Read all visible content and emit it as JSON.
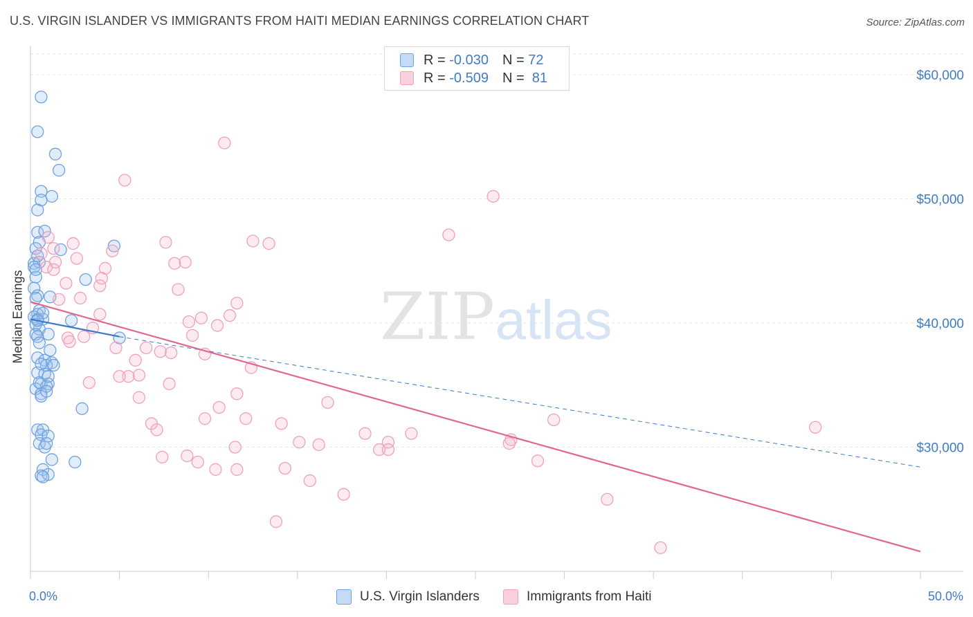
{
  "title": "U.S. VIRGIN ISLANDER VS IMMIGRANTS FROM HAITI MEDIAN EARNINGS CORRELATION CHART",
  "source": "Source: ZipAtlas.com",
  "watermark": {
    "zip": "ZIP",
    "atlas": "atlas"
  },
  "legend": {
    "rows": [
      {
        "r_label": "R =",
        "r_value": "-0.030",
        "n_label": "N =",
        "n_value": "72"
      },
      {
        "r_label": "R =",
        "r_value": "-0.509",
        "n_label": "N =",
        "n_value": "81"
      }
    ]
  },
  "bottom_legend": {
    "series1": "U.S. Virgin Islanders",
    "series2": "Immigrants from Haiti"
  },
  "chart_data": {
    "type": "scatter",
    "title": "U.S. VIRGIN ISLANDER VS IMMIGRANTS FROM HAITI MEDIAN EARNINGS CORRELATION CHART",
    "xlabel": "",
    "ylabel": "Median Earnings",
    "xlim": [
      0,
      50
    ],
    "ylim": [
      20000,
      62000
    ],
    "x_tick_labels": [
      "0.0%",
      "50.0%"
    ],
    "y_ticks": [
      30000,
      40000,
      50000,
      60000
    ],
    "y_tick_labels": [
      "$30,000",
      "$40,000",
      "$50,000",
      "$60,000"
    ],
    "grid": true,
    "colors": {
      "series1": "#6ea1e0",
      "series2": "#f0a0bc",
      "line1": "#3a78c9",
      "line2": "#e0668f",
      "tick": "#3f7cc4"
    },
    "series": [
      {
        "name": "U.S. Virgin Islanders",
        "r": -0.03,
        "n": 72,
        "trend": {
          "solid": [
            [
              0,
              40300
            ],
            [
              5.0,
              38900
            ]
          ],
          "dashed": [
            [
              5.0,
              38900
            ],
            [
              50,
              28400
            ]
          ]
        },
        "points": [
          [
            0.6,
            58200
          ],
          [
            0.4,
            55400
          ],
          [
            1.4,
            53600
          ],
          [
            1.6,
            52300
          ],
          [
            0.6,
            50600
          ],
          [
            1.2,
            50200
          ],
          [
            0.6,
            49900
          ],
          [
            0.4,
            49100
          ],
          [
            0.4,
            47300
          ],
          [
            0.8,
            47400
          ],
          [
            0.5,
            46500
          ],
          [
            1.7,
            45900
          ],
          [
            4.7,
            46200
          ],
          [
            0.3,
            46000
          ],
          [
            0.2,
            44800
          ],
          [
            0.5,
            44900
          ],
          [
            0.2,
            44500
          ],
          [
            3.1,
            43500
          ],
          [
            0.3,
            43700
          ],
          [
            0.2,
            42800
          ],
          [
            0.4,
            42200
          ],
          [
            0.3,
            42000
          ],
          [
            1.1,
            42100
          ],
          [
            0.5,
            41000
          ],
          [
            0.4,
            40700
          ],
          [
            0.2,
            40500
          ],
          [
            0.4,
            40300
          ],
          [
            0.7,
            40300
          ],
          [
            2.3,
            40200
          ],
          [
            0.3,
            39900
          ],
          [
            0.5,
            39500
          ],
          [
            0.3,
            39100
          ],
          [
            1.0,
            39100
          ],
          [
            0.4,
            38900
          ],
          [
            5.0,
            38800
          ],
          [
            1.1,
            37800
          ],
          [
            0.4,
            37200
          ],
          [
            0.8,
            37000
          ],
          [
            1.2,
            36800
          ],
          [
            0.9,
            36600
          ],
          [
            1.3,
            36600
          ],
          [
            0.4,
            36000
          ],
          [
            0.8,
            35900
          ],
          [
            0.6,
            35100
          ],
          [
            1.0,
            35100
          ],
          [
            0.9,
            34900
          ],
          [
            0.3,
            34700
          ],
          [
            0.6,
            34300
          ],
          [
            0.6,
            34100
          ],
          [
            2.9,
            33100
          ],
          [
            0.4,
            31400
          ],
          [
            0.7,
            31400
          ],
          [
            0.6,
            31000
          ],
          [
            1.0,
            30900
          ],
          [
            0.5,
            30300
          ],
          [
            0.8,
            30000
          ],
          [
            0.9,
            30300
          ],
          [
            1.2,
            29000
          ],
          [
            2.5,
            28800
          ],
          [
            0.7,
            28200
          ],
          [
            0.6,
            27700
          ],
          [
            1.0,
            27800
          ],
          [
            0.7,
            27600
          ],
          [
            0.3,
            44300
          ],
          [
            0.4,
            45400
          ],
          [
            0.7,
            40800
          ],
          [
            0.4,
            40200
          ],
          [
            0.5,
            38400
          ],
          [
            0.6,
            36700
          ],
          [
            0.5,
            35200
          ],
          [
            0.9,
            34500
          ],
          [
            1.0,
            35700
          ]
        ]
      },
      {
        "name": "Immigrants from Haiti",
        "r": -0.509,
        "n": 81,
        "trend": {
          "solid": [
            [
              0,
              41700
            ],
            [
              50,
              21600
            ]
          ]
        },
        "points": [
          [
            10.9,
            54500
          ],
          [
            5.3,
            51500
          ],
          [
            26.0,
            50200
          ],
          [
            23.5,
            47100
          ],
          [
            1.0,
            46900
          ],
          [
            2.4,
            46400
          ],
          [
            7.6,
            46500
          ],
          [
            12.5,
            46600
          ],
          [
            13.4,
            46400
          ],
          [
            1.3,
            46000
          ],
          [
            4.6,
            45800
          ],
          [
            0.6,
            45600
          ],
          [
            2.6,
            45200
          ],
          [
            1.4,
            44900
          ],
          [
            8.1,
            44800
          ],
          [
            8.7,
            44900
          ],
          [
            0.9,
            44500
          ],
          [
            1.3,
            44300
          ],
          [
            4.2,
            44400
          ],
          [
            4.0,
            43600
          ],
          [
            2.0,
            43200
          ],
          [
            3.9,
            43000
          ],
          [
            8.3,
            42700
          ],
          [
            2.8,
            42000
          ],
          [
            1.6,
            41900
          ],
          [
            11.6,
            41600
          ],
          [
            3.9,
            40700
          ],
          [
            11.2,
            40600
          ],
          [
            9.6,
            40400
          ],
          [
            8.9,
            40100
          ],
          [
            10.5,
            39800
          ],
          [
            3.5,
            39600
          ],
          [
            9.1,
            39000
          ],
          [
            3.0,
            38900
          ],
          [
            2.1,
            38800
          ],
          [
            2.2,
            38500
          ],
          [
            4.8,
            38000
          ],
          [
            6.5,
            38000
          ],
          [
            7.3,
            37700
          ],
          [
            7.9,
            37600
          ],
          [
            9.8,
            37500
          ],
          [
            12.4,
            36400
          ],
          [
            5.9,
            37000
          ],
          [
            6.1,
            35800
          ],
          [
            5.5,
            35700
          ],
          [
            5.0,
            35700
          ],
          [
            3.3,
            35200
          ],
          [
            7.8,
            35100
          ],
          [
            11.6,
            34300
          ],
          [
            6.1,
            34000
          ],
          [
            16.7,
            33600
          ],
          [
            10.6,
            33200
          ],
          [
            9.8,
            32300
          ],
          [
            12.1,
            32300
          ],
          [
            14.1,
            31900
          ],
          [
            29.4,
            32200
          ],
          [
            6.8,
            31900
          ],
          [
            7.1,
            31400
          ],
          [
            18.8,
            31100
          ],
          [
            21.4,
            31100
          ],
          [
            44.1,
            31600
          ],
          [
            20.1,
            30400
          ],
          [
            27.0,
            30600
          ],
          [
            15.1,
            30400
          ],
          [
            16.2,
            30200
          ],
          [
            26.9,
            30300
          ],
          [
            11.5,
            30000
          ],
          [
            19.6,
            29800
          ],
          [
            20.1,
            29800
          ],
          [
            7.4,
            29200
          ],
          [
            8.8,
            29300
          ],
          [
            28.5,
            28900
          ],
          [
            9.4,
            28800
          ],
          [
            10.4,
            28200
          ],
          [
            11.6,
            28200
          ],
          [
            14.3,
            28300
          ],
          [
            15.7,
            27300
          ],
          [
            17.6,
            26200
          ],
          [
            32.4,
            25800
          ],
          [
            13.8,
            24000
          ],
          [
            35.4,
            21900
          ]
        ]
      }
    ]
  }
}
